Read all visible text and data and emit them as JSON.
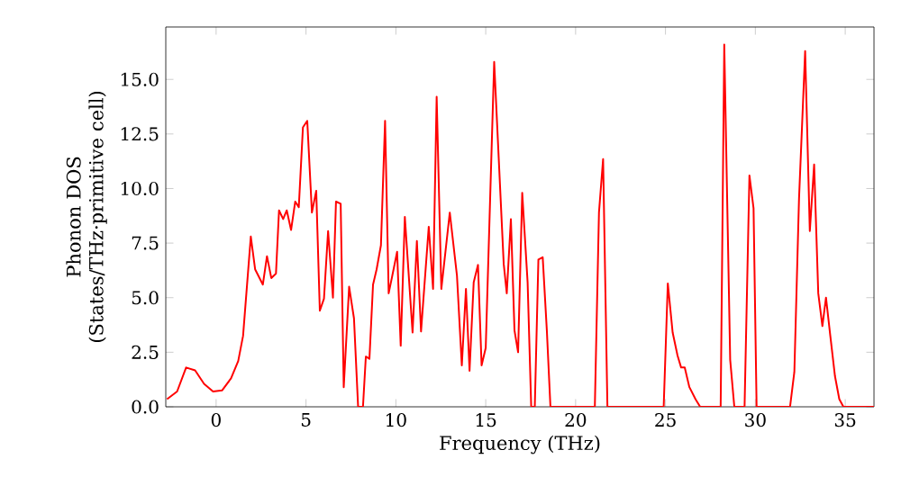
{
  "chart_data": {
    "type": "line",
    "xlabel": "Frequency (THz)",
    "ylabel": "Phonon DOS (States/THz·primitive cell)",
    "xlim": [
      -2.8,
      36.6
    ],
    "ylim": [
      0,
      17.4
    ],
    "xticks": [
      0,
      5,
      10,
      15,
      20,
      25,
      30,
      35
    ],
    "yticks": [
      {
        "value": 0,
        "label": "0.0"
      },
      {
        "value": 2.5,
        "label": "2.5"
      },
      {
        "value": 5,
        "label": "5.0"
      },
      {
        "value": 7.5,
        "label": "7.5"
      },
      {
        "value": 10,
        "label": "10.0"
      },
      {
        "value": 12.5,
        "label": "12.5"
      },
      {
        "value": 15,
        "label": "15.0"
      }
    ],
    "grid": false,
    "marker": "none",
    "line_style": "solid",
    "series": [
      {
        "color": "#ff0000",
        "x": [
          -2.73,
          -2.17,
          -1.67,
          -1.17,
          -0.67,
          -0.17,
          0.33,
          0.83,
          1.23,
          1.5,
          1.93,
          2.17,
          2.6,
          2.83,
          3.07,
          3.33,
          3.5,
          3.73,
          3.93,
          4.17,
          4.4,
          4.6,
          4.83,
          5.07,
          5.33,
          5.57,
          5.77,
          6.0,
          6.23,
          6.5,
          6.67,
          6.93,
          7.1,
          7.4,
          7.67,
          7.9,
          8.17,
          8.33,
          8.53,
          8.73,
          8.93,
          9.17,
          9.4,
          9.6,
          9.8,
          10.07,
          10.27,
          10.5,
          10.93,
          11.17,
          11.4,
          11.83,
          12.07,
          12.27,
          12.53,
          13.0,
          13.4,
          13.67,
          13.9,
          14.1,
          14.33,
          14.57,
          14.77,
          15.0,
          15.47,
          16.0,
          16.17,
          16.4,
          16.6,
          16.8,
          17.03,
          17.33,
          17.53,
          17.73,
          17.93,
          18.17,
          18.4,
          18.6,
          21.07,
          21.3,
          21.53,
          21.77,
          24.9,
          25.13,
          25.4,
          25.67,
          25.87,
          26.07,
          26.33,
          26.67,
          26.93,
          28.07,
          28.27,
          28.6,
          28.83,
          29.4,
          29.67,
          29.9,
          30.07,
          31.93,
          32.17,
          32.43,
          32.77,
          33.03,
          33.27,
          33.5,
          33.73,
          33.93,
          34.17,
          34.43,
          34.67,
          34.9,
          36.6
        ],
        "values": [
          0.35,
          0.7,
          1.8,
          1.67,
          1.05,
          0.7,
          0.75,
          1.3,
          2.1,
          3.25,
          7.8,
          6.3,
          5.6,
          6.9,
          5.9,
          6.1,
          9.0,
          8.6,
          9.0,
          8.1,
          9.4,
          9.15,
          12.8,
          13.1,
          8.9,
          9.9,
          4.4,
          4.95,
          8.05,
          5.0,
          9.4,
          9.3,
          0.9,
          5.5,
          4.05,
          0,
          0,
          2.3,
          2.2,
          5.6,
          6.3,
          7.4,
          13.1,
          5.2,
          6.0,
          7.1,
          2.8,
          8.7,
          3.4,
          7.6,
          3.45,
          8.25,
          5.4,
          14.2,
          5.4,
          8.9,
          6.0,
          1.9,
          5.4,
          1.65,
          5.7,
          6.5,
          1.9,
          2.7,
          15.8,
          6.55,
          5.2,
          8.6,
          3.5,
          2.5,
          9.8,
          5.7,
          0,
          0,
          6.75,
          6.85,
          3.5,
          0,
          0,
          8.9,
          11.35,
          0,
          0,
          5.65,
          3.4,
          2.35,
          1.8,
          1.8,
          0.9,
          0.35,
          0,
          0,
          16.6,
          2.15,
          0,
          0,
          10.6,
          9.1,
          0,
          0,
          1.6,
          9.55,
          16.3,
          8.05,
          11.1,
          5.2,
          3.7,
          5.0,
          3.25,
          1.4,
          0.35,
          0,
          0
        ]
      }
    ]
  }
}
